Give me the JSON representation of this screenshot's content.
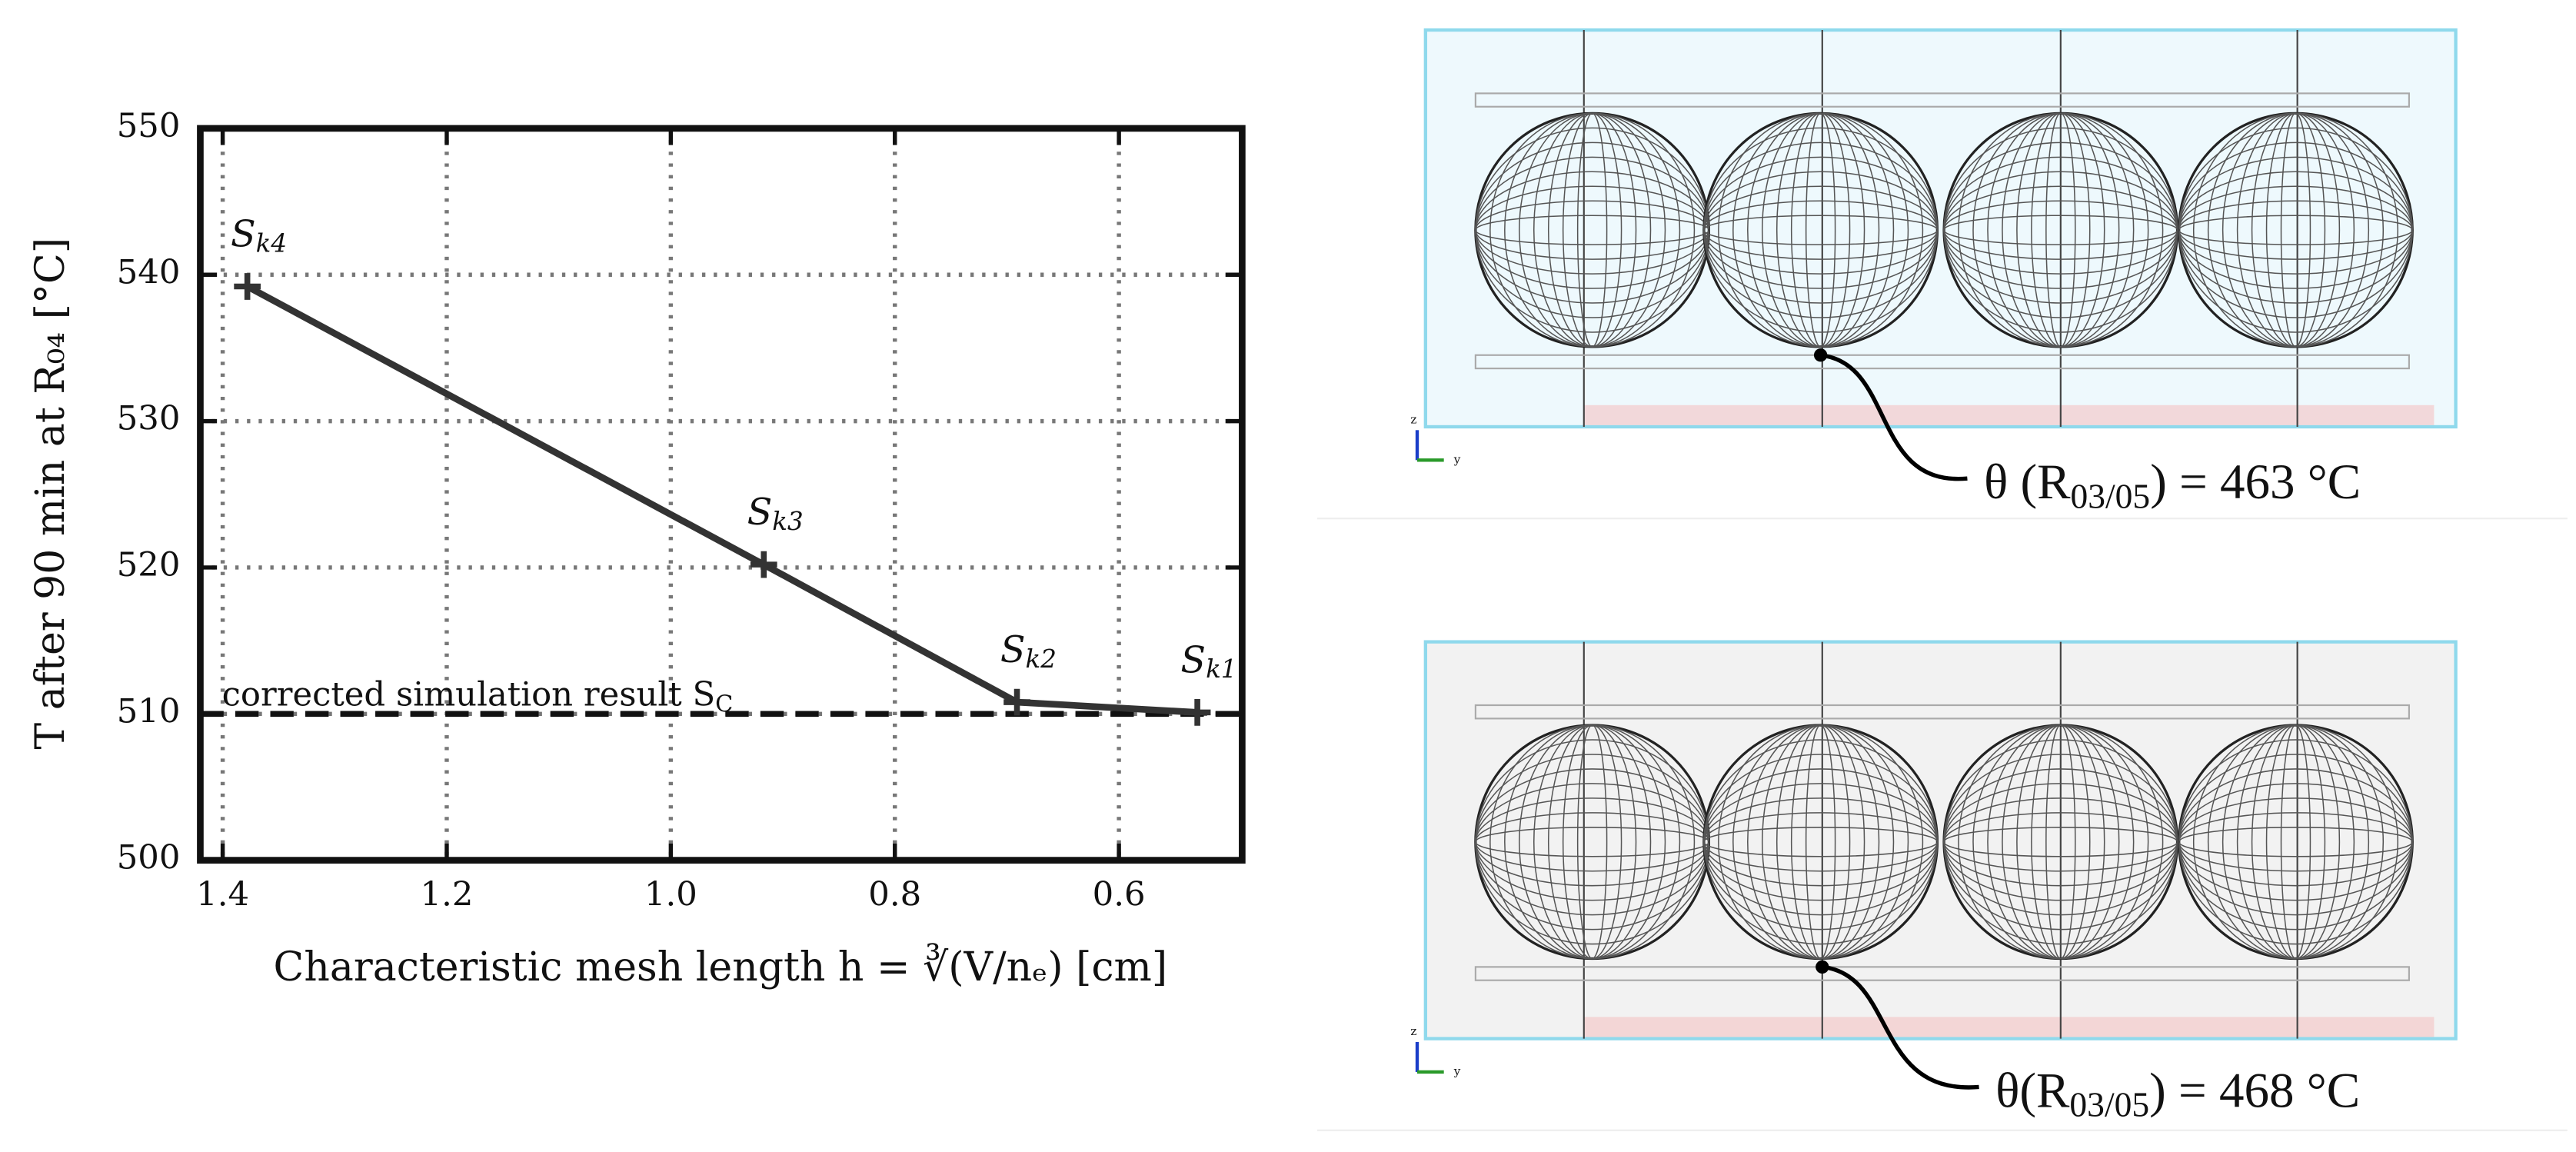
{
  "chart_data": {
    "type": "line",
    "xlabel": "Characteristic mesh length h = ∛(V/nₑ) [cm]",
    "ylabel": "T after 90 min at R₀₄ [°C]",
    "x": [
      1.378,
      0.917,
      0.691,
      0.53
    ],
    "series": [
      {
        "color": "#333333",
        "values": [
          539.2,
          520.2,
          510.8,
          510.1
        ]
      }
    ],
    "point_label_base": "S",
    "point_label_subs": [
      "k4",
      "k3",
      "k2",
      "k1"
    ],
    "reference_line": {
      "value": 510,
      "label": "corrected simulation result S",
      "label_sub": "C",
      "color": "#111111"
    },
    "xlim": [
      1.42,
      0.49
    ],
    "ylim": [
      500,
      550
    ],
    "xticks": [
      1.4,
      1.2,
      {
        "value": 1,
        "label": "1.0"
      },
      0.8,
      0.6
    ],
    "yticks": [
      500,
      510,
      520,
      530,
      540,
      550
    ],
    "grid": true
  },
  "images": [
    {
      "annotation_prefix": "θ (R",
      "annotation_sub": "03/05",
      "annotation_suffix": ") = 463 °C",
      "axes": [
        "z",
        "y"
      ]
    },
    {
      "annotation_prefix": "θ(R",
      "annotation_sub": "03/05",
      "annotation_suffix": ") = 468 °C",
      "axes": [
        "z",
        "y"
      ]
    }
  ]
}
